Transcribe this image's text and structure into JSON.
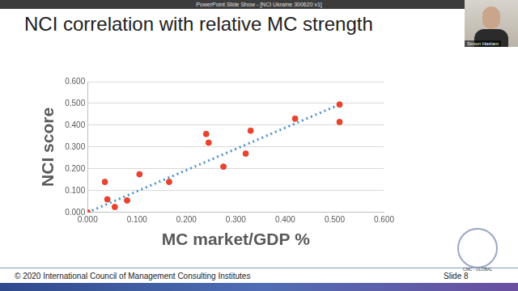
{
  "window_title": "PowerPoint Slide Show - [NCI Ukraine 300620 v1]",
  "speaker": "Simon Haslam",
  "footer": "© 2020 International Council of Management Consulting Institutes",
  "slide_number": "Slide 8",
  "logo_text": "CMC - GLOBAL",
  "chart_data": {
    "type": "scatter",
    "title": "NCI correlation with relative MC strength",
    "x_label": "MC market/GDP %",
    "y_label": "NCI score",
    "xlim": [
      0,
      0.6
    ],
    "ylim": [
      0,
      0.6
    ],
    "xticks": [
      {
        "value": 0,
        "label": "0.000"
      },
      {
        "value": 0.1,
        "label": "0.100"
      },
      {
        "value": 0.2,
        "label": "0.200"
      },
      {
        "value": 0.3,
        "label": "0.300"
      },
      {
        "value": 0.4,
        "label": "0.400"
      },
      {
        "value": 0.5,
        "label": "0.500"
      },
      {
        "value": 0.6,
        "label": "0.600"
      }
    ],
    "yticks": [
      {
        "value": 0,
        "label": "0.000"
      },
      {
        "value": 0.1,
        "label": "0.100"
      },
      {
        "value": 0.2,
        "label": "0.200"
      },
      {
        "value": 0.3,
        "label": "0.300"
      },
      {
        "value": 0.4,
        "label": "0.400"
      },
      {
        "value": 0.5,
        "label": "0.500"
      },
      {
        "value": 0.6,
        "label": "0.600"
      }
    ],
    "grid": "y",
    "series": [
      {
        "type": "scatter",
        "color": "#e8432e",
        "marker": "circle",
        "x": [
          0.0,
          0.035,
          0.04,
          0.055,
          0.08,
          0.105,
          0.165,
          0.24,
          0.245,
          0.275,
          0.32,
          0.33,
          0.42,
          0.51,
          0.51
        ],
        "values": [
          0.0,
          0.14,
          0.06,
          0.025,
          0.055,
          0.175,
          0.14,
          0.36,
          0.32,
          0.21,
          0.27,
          0.375,
          0.43,
          0.495,
          0.415
        ]
      },
      {
        "type": "line",
        "color": "#4a8fd0",
        "line_style": "dotted",
        "x": [
          0.0,
          0.51
        ],
        "values": [
          0.0,
          0.495
        ]
      }
    ]
  }
}
